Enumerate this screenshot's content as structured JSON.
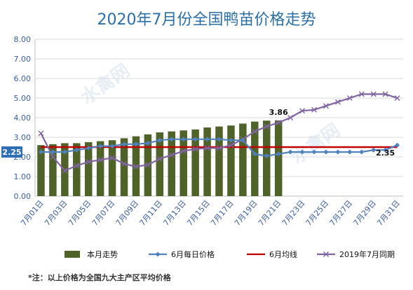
{
  "title": "2020年7月份全国鸭苗价格走势",
  "note": "*注：以上价格为全国九大主产区平均价格",
  "watermark": "水禽网",
  "colors": {
    "bar": "#4f6228",
    "daily": "#4f81bd",
    "avg": "#c00000",
    "lastyear": "#8064a2",
    "axis_text": "#3a5da0"
  },
  "chart_data": {
    "type": "bar",
    "title": "2020年7月份全国鸭苗价格走势",
    "xlabel": "",
    "ylabel": "",
    "ylim": [
      0,
      8
    ],
    "yticks": [
      "0.00",
      "1.00",
      "2.00",
      "3.00",
      "4.00",
      "5.00",
      "6.00",
      "7.00",
      "8.00"
    ],
    "grid": true,
    "legend_position": "bottom",
    "categories": [
      "7月01日",
      "7月02日",
      "7月03日",
      "7月04日",
      "7月05日",
      "7月06日",
      "7月07日",
      "7月08日",
      "7月09日",
      "7月10日",
      "7月11日",
      "7月12日",
      "7月13日",
      "7月14日",
      "7月15日",
      "7月16日",
      "7月17日",
      "7月18日",
      "7月19日",
      "7月20日",
      "7月21日",
      "7月22日",
      "7月23日",
      "7月24日",
      "7月25日",
      "7月26日",
      "7月27日",
      "7月28日",
      "7月29日",
      "7月30日",
      "7月31日"
    ],
    "xtick_labels": [
      "7月01日",
      "7月03日",
      "7月05日",
      "7月07日",
      "7月09日",
      "7月11日",
      "7月13日",
      "7月15日",
      "7月17日",
      "7月19日",
      "7月21日",
      "7月23日",
      "7月25日",
      "7月27日",
      "7月29日",
      "7月31日"
    ],
    "series": [
      {
        "name": "本月走势",
        "type": "bar",
        "values": [
          2.6,
          2.65,
          2.7,
          2.7,
          2.75,
          2.8,
          2.85,
          2.95,
          3.05,
          3.15,
          3.25,
          3.3,
          3.35,
          3.4,
          3.5,
          3.55,
          3.6,
          3.7,
          3.8,
          3.85,
          3.86,
          null,
          null,
          null,
          null,
          null,
          null,
          null,
          null,
          null,
          null
        ]
      },
      {
        "name": "6月每日价格",
        "type": "line",
        "values": [
          2.25,
          2.25,
          2.25,
          2.35,
          2.45,
          2.55,
          2.55,
          2.65,
          2.65,
          2.7,
          2.85,
          2.9,
          2.9,
          2.9,
          2.9,
          2.9,
          2.85,
          2.85,
          2.15,
          2.05,
          2.15,
          2.25,
          2.25,
          2.25,
          2.25,
          2.25,
          2.25,
          2.25,
          2.35,
          2.35,
          2.6
        ]
      },
      {
        "name": "6月均线",
        "type": "line",
        "values": [
          2.5,
          2.5,
          2.5,
          2.5,
          2.5,
          2.5,
          2.5,
          2.5,
          2.5,
          2.5,
          2.5,
          2.5,
          2.5,
          2.5,
          2.5,
          2.5,
          2.5,
          2.5,
          2.5,
          2.5,
          2.5,
          2.5,
          2.5,
          2.5,
          2.5,
          2.5,
          2.5,
          2.5,
          2.5,
          2.5,
          2.5
        ]
      },
      {
        "name": "2019年7月同期",
        "type": "line",
        "values": [
          3.2,
          2.0,
          1.3,
          1.55,
          1.75,
          1.85,
          1.95,
          1.65,
          1.5,
          1.6,
          1.9,
          2.1,
          2.3,
          2.4,
          2.45,
          2.45,
          2.6,
          2.9,
          3.3,
          3.55,
          3.75,
          4.0,
          4.35,
          4.4,
          4.6,
          4.8,
          5.0,
          5.2,
          5.2,
          5.2,
          5.0
        ]
      }
    ],
    "annotations": [
      {
        "text": "3.86",
        "x": "7月21日",
        "y": 3.86
      },
      {
        "text": "2.25",
        "x": "7月01日",
        "y": 2.25
      },
      {
        "text": "2.35",
        "x": "7月30日",
        "y": 2.35
      }
    ]
  }
}
